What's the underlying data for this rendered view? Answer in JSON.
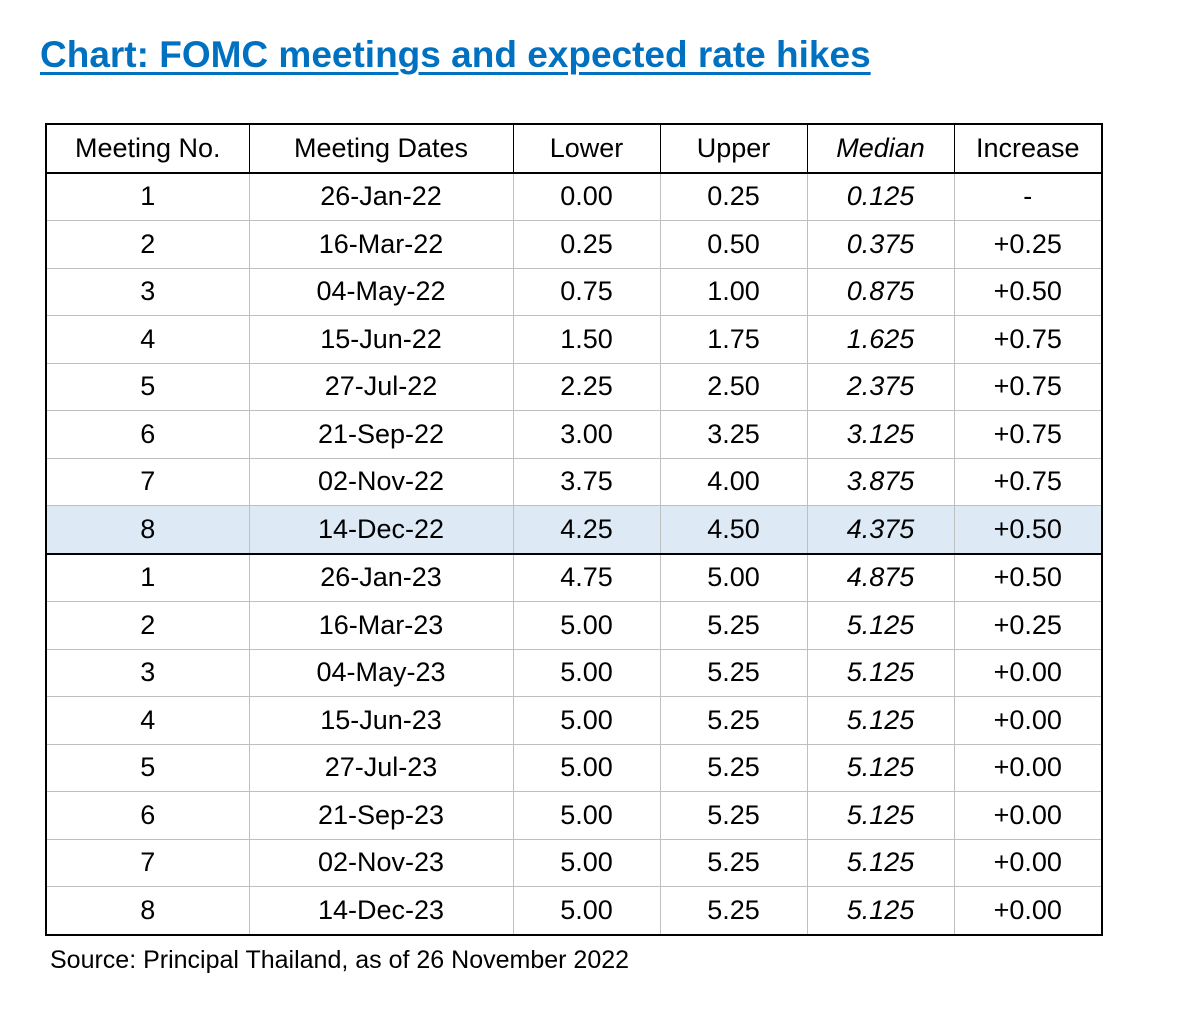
{
  "title": "Chart: FOMC meetings and expected rate hikes",
  "table": {
    "header": [
      "Meeting No.",
      "Meeting Dates",
      "Lower",
      "Upper",
      "Median",
      "Increase"
    ],
    "rows": [
      [
        "1",
        "26-Jan-22",
        "0.00",
        "0.25",
        "0.125",
        "-"
      ],
      [
        "2",
        "16-Mar-22",
        "0.25",
        "0.50",
        "0.375",
        "+0.25"
      ],
      [
        "3",
        "04-May-22",
        "0.75",
        "1.00",
        "0.875",
        "+0.50"
      ],
      [
        "4",
        "15-Jun-22",
        "1.50",
        "1.75",
        "1.625",
        "+0.75"
      ],
      [
        "5",
        "27-Jul-22",
        "2.25",
        "2.50",
        "2.375",
        "+0.75"
      ],
      [
        "6",
        "21-Sep-22",
        "3.00",
        "3.25",
        "3.125",
        "+0.75"
      ],
      [
        "7",
        "02-Nov-22",
        "3.75",
        "4.00",
        "3.875",
        "+0.75"
      ],
      [
        "8",
        "14-Dec-22",
        "4.25",
        "4.50",
        "4.375",
        "+0.50"
      ],
      [
        "1",
        "26-Jan-23",
        "4.75",
        "5.00",
        "4.875",
        "+0.50"
      ],
      [
        "2",
        "16-Mar-23",
        "5.00",
        "5.25",
        "5.125",
        "+0.25"
      ],
      [
        "3",
        "04-May-23",
        "5.00",
        "5.25",
        "5.125",
        "+0.00"
      ],
      [
        "4",
        "15-Jun-23",
        "5.00",
        "5.25",
        "5.125",
        "+0.00"
      ],
      [
        "5",
        "27-Jul-23",
        "5.00",
        "5.25",
        "5.125",
        "+0.00"
      ],
      [
        "6",
        "21-Sep-23",
        "5.00",
        "5.25",
        "5.125",
        "+0.00"
      ],
      [
        "7",
        "02-Nov-23",
        "5.00",
        "5.25",
        "5.125",
        "+0.00"
      ],
      [
        "8",
        "14-Dec-23",
        "5.00",
        "5.25",
        "5.125",
        "+0.00"
      ]
    ]
  },
  "source": "Source: Principal Thailand, as of 26 November 2022"
}
